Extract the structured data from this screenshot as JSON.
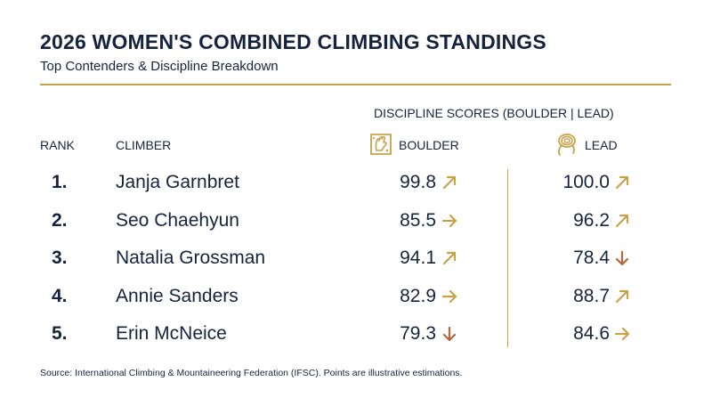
{
  "header": {
    "title": "2026 WOMEN'S COMBINED CLIMBING STANDINGS",
    "subtitle": "Top Contenders & Discipline Breakdown"
  },
  "table": {
    "group_header": "DISCIPLINE SCORES (BOULDER | LEAD)",
    "col_rank": "RANK",
    "col_climber": "CLIMBER",
    "col_boulder": "BOULDER",
    "col_lead": "LEAD",
    "boulder_icon": "climbing-hold-icon",
    "lead_icon": "rope-coil-icon"
  },
  "colors": {
    "navy": "#16233f",
    "gold": "#c8a24a",
    "trend_down": "#b5673a"
  },
  "chart_data": {
    "type": "table",
    "title": "2026 WOMEN'S COMBINED CLIMBING STANDINGS",
    "columns": [
      "RANK",
      "CLIMBER",
      "BOULDER",
      "LEAD"
    ],
    "rows": [
      {
        "rank": "1.",
        "climber": "Janja Garnbret",
        "boulder": "99.8",
        "boulder_trend": "up",
        "lead": "100.0",
        "lead_trend": "up"
      },
      {
        "rank": "2.",
        "climber": "Seo Chaehyun",
        "boulder": "85.5",
        "boulder_trend": "flat",
        "lead": "96.2",
        "lead_trend": "up"
      },
      {
        "rank": "3.",
        "climber": "Natalia Grossman",
        "boulder": "94.1",
        "boulder_trend": "up",
        "lead": "78.4",
        "lead_trend": "down"
      },
      {
        "rank": "4.",
        "climber": "Annie Sanders",
        "boulder": "82.9",
        "boulder_trend": "flat",
        "lead": "88.7",
        "lead_trend": "up"
      },
      {
        "rank": "5.",
        "climber": "Erin McNeice",
        "boulder": "79.3",
        "boulder_trend": "down",
        "lead": "84.6",
        "lead_trend": "flat"
      }
    ]
  },
  "footer": {
    "source": "Source: International Climbing & Mountaineering Federation (IFSC). Points are illustrative estimations."
  }
}
